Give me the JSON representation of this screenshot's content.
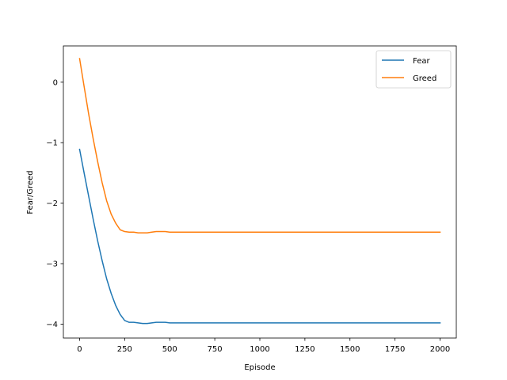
{
  "chart_data": {
    "type": "line",
    "title": "",
    "xlabel": "Episode",
    "ylabel": "Fear/Greed",
    "xlim": [
      -90,
      2090
    ],
    "ylim": [
      -4.23,
      0.6
    ],
    "xticks": [
      0,
      250,
      500,
      750,
      1000,
      1250,
      1500,
      1750,
      2000
    ],
    "xtick_labels": [
      "0",
      "250",
      "500",
      "750",
      "1000",
      "1250",
      "1500",
      "1750",
      "2000"
    ],
    "yticks": [
      -4,
      -3,
      -2,
      -1,
      0
    ],
    "ytick_labels": [
      "−4",
      "−3",
      "−2",
      "−1",
      "0"
    ],
    "grid": false,
    "legend_position": "top-right",
    "series": [
      {
        "name": "Fear",
        "color": "#1f77b4",
        "x": [
          0,
          25,
          50,
          75,
          100,
          125,
          150,
          175,
          200,
          225,
          250,
          275,
          300,
          325,
          350,
          375,
          400,
          425,
          450,
          475,
          500,
          550,
          600,
          700,
          800,
          900,
          1000,
          1250,
          1500,
          1750,
          2000
        ],
        "y": [
          -1.11,
          -1.5,
          -1.88,
          -2.26,
          -2.62,
          -2.95,
          -3.25,
          -3.49,
          -3.69,
          -3.84,
          -3.94,
          -3.97,
          -3.97,
          -3.98,
          -3.99,
          -3.99,
          -3.98,
          -3.97,
          -3.97,
          -3.97,
          -3.98,
          -3.98,
          -3.98,
          -3.98,
          -3.98,
          -3.98,
          -3.98,
          -3.98,
          -3.98,
          -3.98,
          -3.98
        ]
      },
      {
        "name": "Greed",
        "color": "#ff7f0e",
        "x": [
          0,
          25,
          50,
          75,
          100,
          125,
          150,
          175,
          200,
          225,
          250,
          275,
          300,
          325,
          350,
          375,
          400,
          425,
          450,
          475,
          500,
          550,
          600,
          700,
          800,
          900,
          1000,
          1250,
          1500,
          1750,
          2000
        ],
        "y": [
          0.39,
          -0.07,
          -0.52,
          -0.93,
          -1.31,
          -1.66,
          -1.96,
          -2.18,
          -2.33,
          -2.44,
          -2.47,
          -2.48,
          -2.48,
          -2.49,
          -2.49,
          -2.49,
          -2.48,
          -2.47,
          -2.47,
          -2.47,
          -2.48,
          -2.48,
          -2.48,
          -2.48,
          -2.48,
          -2.48,
          -2.48,
          -2.48,
          -2.48,
          -2.48,
          -2.48
        ]
      }
    ]
  }
}
